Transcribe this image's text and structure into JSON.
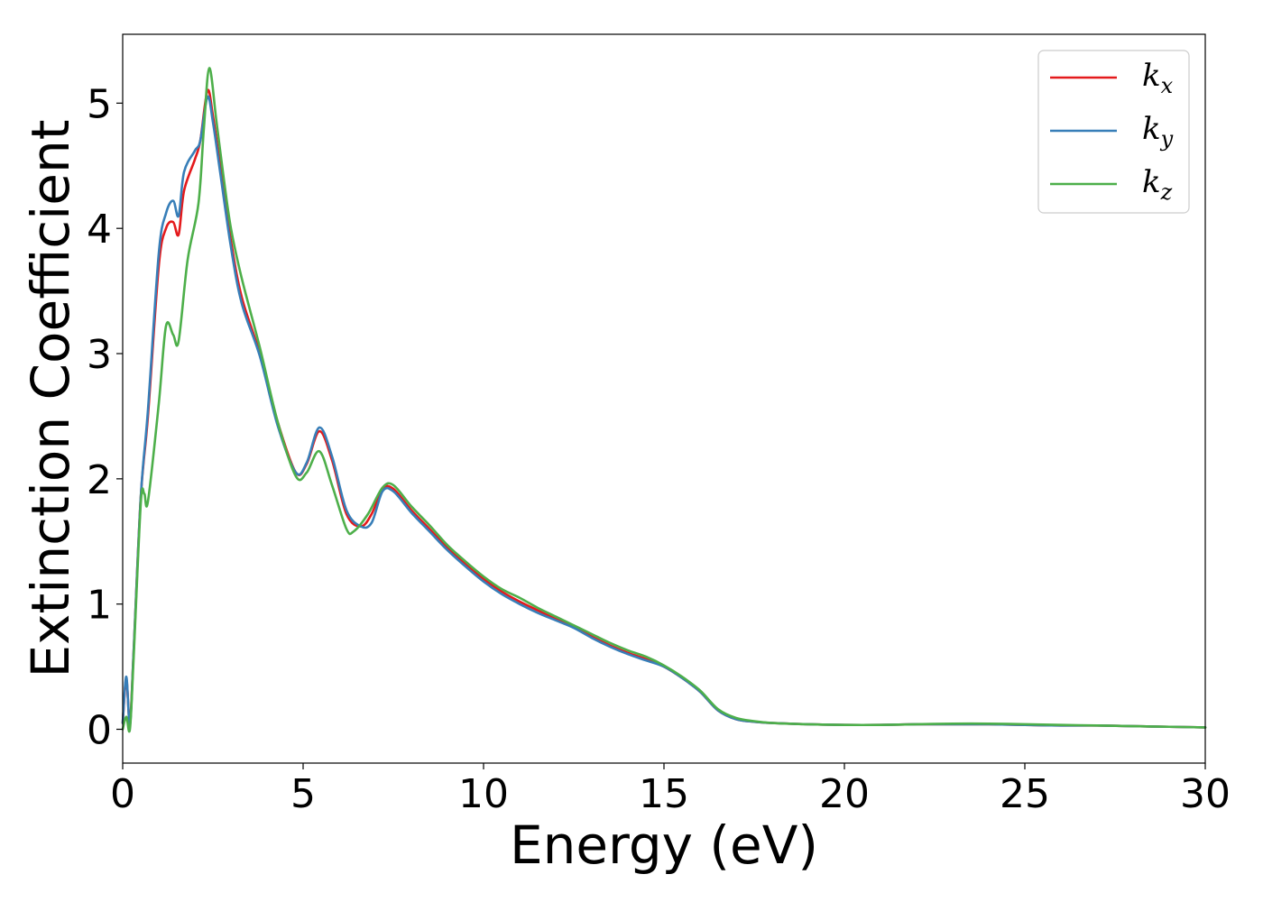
{
  "chart_data": {
    "type": "line",
    "title": "",
    "xlabel": "Energy (eV)",
    "ylabel": "Extinction Coefficient",
    "xlim": [
      0,
      30
    ],
    "ylim": [
      -0.27,
      5.55
    ],
    "xticks": [
      0,
      5,
      10,
      15,
      20,
      25,
      30
    ],
    "yticks": [
      0,
      1,
      2,
      3,
      4,
      5
    ],
    "grid": false,
    "legend": {
      "position": "top-right",
      "entries": [
        {
          "base": "k",
          "sub": "x",
          "color": "#e41a1c"
        },
        {
          "base": "k",
          "sub": "y",
          "color": "#377eb8"
        },
        {
          "base": "k",
          "sub": "z",
          "color": "#4daf4a"
        }
      ]
    },
    "series": [
      {
        "color": "#e41a1c",
        "x": [
          0.0,
          0.1,
          0.2,
          0.3,
          0.5,
          0.7,
          1.0,
          1.2,
          1.4,
          1.55,
          1.7,
          2.0,
          2.15,
          2.35,
          2.5,
          2.7,
          3.0,
          3.3,
          3.8,
          4.3,
          4.8,
          5.1,
          5.45,
          5.8,
          6.2,
          6.6,
          6.9,
          7.2,
          7.5,
          8.0,
          8.5,
          9.0,
          9.5,
          10.0,
          10.5,
          11.0,
          11.5,
          12.0,
          12.5,
          13.0,
          13.5,
          14.0,
          14.5,
          15.0,
          15.5,
          16.0,
          16.5,
          17.0,
          17.5,
          18.0,
          19.0,
          20.0,
          21.0,
          22.0,
          23.0,
          24.0,
          25.0,
          26.0,
          27.0,
          28.0,
          29.0,
          30.0
        ],
        "values": [
          0.05,
          0.4,
          0.05,
          0.6,
          1.85,
          2.5,
          3.7,
          4.0,
          4.05,
          3.95,
          4.3,
          4.55,
          4.7,
          5.1,
          4.9,
          4.5,
          3.9,
          3.45,
          3.0,
          2.45,
          2.05,
          2.12,
          2.38,
          2.15,
          1.72,
          1.62,
          1.72,
          1.92,
          1.92,
          1.75,
          1.6,
          1.45,
          1.32,
          1.2,
          1.1,
          1.02,
          0.95,
          0.88,
          0.82,
          0.74,
          0.67,
          0.61,
          0.56,
          0.5,
          0.41,
          0.3,
          0.15,
          0.08,
          0.06,
          0.05,
          0.04,
          0.035,
          0.035,
          0.04,
          0.04,
          0.04,
          0.035,
          0.03,
          0.03,
          0.025,
          0.02,
          0.015
        ]
      },
      {
        "color": "#377eb8",
        "x": [
          0.0,
          0.1,
          0.2,
          0.3,
          0.5,
          0.7,
          1.0,
          1.2,
          1.4,
          1.55,
          1.7,
          2.0,
          2.15,
          2.35,
          2.5,
          2.7,
          3.0,
          3.3,
          3.8,
          4.3,
          4.8,
          5.1,
          5.45,
          5.8,
          6.2,
          6.6,
          6.9,
          7.2,
          7.5,
          8.0,
          8.5,
          9.0,
          9.5,
          10.0,
          10.5,
          11.0,
          11.5,
          12.0,
          12.5,
          13.0,
          13.5,
          14.0,
          14.5,
          15.0,
          15.5,
          16.0,
          16.5,
          17.0,
          17.5,
          18.0,
          19.0,
          20.0,
          21.0,
          22.0,
          23.0,
          24.0,
          25.0,
          26.0,
          27.0,
          28.0,
          29.0,
          30.0
        ],
        "values": [
          0.05,
          0.42,
          0.03,
          0.6,
          1.85,
          2.55,
          3.8,
          4.12,
          4.22,
          4.1,
          4.45,
          4.62,
          4.7,
          5.05,
          4.85,
          4.45,
          3.85,
          3.4,
          2.98,
          2.42,
          2.05,
          2.13,
          2.41,
          2.18,
          1.75,
          1.62,
          1.65,
          1.9,
          1.9,
          1.73,
          1.58,
          1.43,
          1.3,
          1.18,
          1.08,
          1.0,
          0.93,
          0.87,
          0.81,
          0.73,
          0.66,
          0.6,
          0.55,
          0.5,
          0.41,
          0.3,
          0.15,
          0.08,
          0.06,
          0.05,
          0.04,
          0.035,
          0.035,
          0.04,
          0.04,
          0.04,
          0.035,
          0.03,
          0.03,
          0.025,
          0.02,
          0.015
        ]
      },
      {
        "color": "#4daf4a",
        "x": [
          0.0,
          0.1,
          0.2,
          0.3,
          0.5,
          0.6,
          0.7,
          1.0,
          1.2,
          1.4,
          1.55,
          1.8,
          2.1,
          2.25,
          2.4,
          2.6,
          2.8,
          3.0,
          3.3,
          3.8,
          4.3,
          4.8,
          5.1,
          5.45,
          5.8,
          6.2,
          6.4,
          6.8,
          7.2,
          7.5,
          8.0,
          8.5,
          9.0,
          9.5,
          10.0,
          10.5,
          11.0,
          11.5,
          12.0,
          12.5,
          13.0,
          13.5,
          14.0,
          14.5,
          15.0,
          15.5,
          16.0,
          16.5,
          17.0,
          17.5,
          18.0,
          19.0,
          20.0,
          21.0,
          22.0,
          23.0,
          24.0,
          25.0,
          26.0,
          27.0,
          28.0,
          29.0,
          30.0
        ],
        "values": [
          0.0,
          0.1,
          0.0,
          0.55,
          1.8,
          1.88,
          1.82,
          2.6,
          3.22,
          3.15,
          3.1,
          3.75,
          4.2,
          4.8,
          5.28,
          4.85,
          4.4,
          4.0,
          3.6,
          3.05,
          2.45,
          2.02,
          2.05,
          2.22,
          1.95,
          1.6,
          1.58,
          1.72,
          1.93,
          1.95,
          1.78,
          1.63,
          1.47,
          1.34,
          1.22,
          1.12,
          1.05,
          0.97,
          0.9,
          0.83,
          0.76,
          0.69,
          0.63,
          0.58,
          0.51,
          0.42,
          0.31,
          0.16,
          0.09,
          0.065,
          0.05,
          0.04,
          0.035,
          0.035,
          0.04,
          0.045,
          0.045,
          0.04,
          0.035,
          0.03,
          0.025,
          0.02,
          0.015
        ]
      }
    ]
  }
}
